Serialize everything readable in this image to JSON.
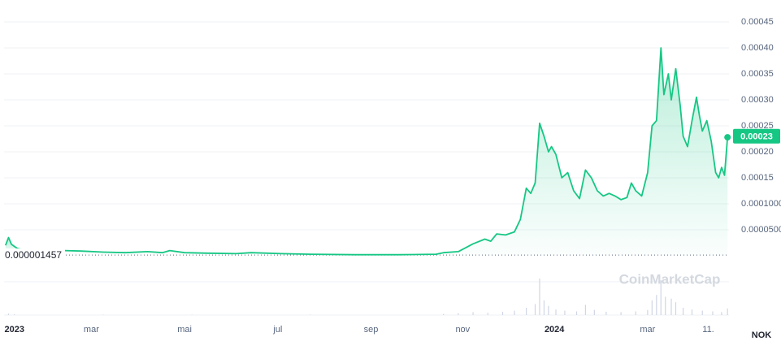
{
  "chart_data": {
    "type": "line",
    "currency": "NOK",
    "watermark": "CoinMarketCap",
    "baseline": 1.457e-06,
    "current_price": 0.00023,
    "xlim": [
      -7,
      483
    ],
    "xticks": [
      {
        "value": 0,
        "label": "2023"
      },
      {
        "value": 52,
        "label": "mar"
      },
      {
        "value": 115,
        "label": "mai"
      },
      {
        "value": 178,
        "label": "jul"
      },
      {
        "value": 241,
        "label": "sep"
      },
      {
        "value": 303,
        "label": "nov"
      },
      {
        "value": 365,
        "label": "2024"
      },
      {
        "value": 428,
        "label": "mar"
      },
      {
        "value": 469,
        "label": "11."
      }
    ],
    "ylim": [
      0,
      0.00045
    ],
    "yticks": [
      {
        "value": 5e-05,
        "label": "0.0000500"
      },
      {
        "value": 0.0001,
        "label": "0.0001000"
      },
      0.00015,
      {
        "value": 0.0002,
        "label": "0.00020"
      },
      0.00025,
      {
        "value": 0.0003,
        "label": "0.00030"
      },
      0.00035,
      {
        "value": 0.0004,
        "label": "0.00040"
      },
      0.00045
    ],
    "grid": true,
    "series": [
      {
        "color": "#16c784",
        "x": [
          -6,
          -4,
          -2,
          0,
          2,
          5,
          10,
          34,
          45,
          60,
          75,
          90,
          100,
          105,
          115,
          130,
          150,
          160,
          180,
          200,
          230,
          260,
          285,
          290,
          300,
          310,
          318,
          322,
          326,
          332,
          338,
          342,
          346,
          349,
          352,
          355,
          358,
          361,
          363,
          366,
          370,
          374,
          378,
          382,
          386,
          390,
          394,
          398,
          402,
          406,
          410,
          414,
          417,
          420,
          424,
          428,
          431,
          434,
          437,
          439,
          442,
          444,
          447,
          450,
          452,
          455,
          458,
          461,
          463,
          465,
          468,
          471,
          474,
          476,
          478,
          480,
          482
        ],
        "values": [
          2e-05,
          3.5e-05,
          2.2e-05,
          1.8e-05,
          1.4e-05,
          1.2e-05,
          null,
          1e-05,
          9e-06,
          7e-06,
          6e-06,
          8e-06,
          6e-06,
          1e-05,
          6e-06,
          5e-06,
          4e-06,
          6e-06,
          4e-06,
          3e-06,
          2e-06,
          2e-06,
          3e-06,
          6e-06,
          8e-06,
          2.3e-05,
          3.2e-05,
          2.8e-05,
          4.2e-05,
          4e-05,
          4.6e-05,
          7e-05,
          0.00013,
          0.00012,
          0.00014,
          0.000255,
          0.00023,
          0.0002,
          0.00021,
          0.000195,
          0.00015,
          0.00016,
          0.000125,
          0.00011,
          0.000165,
          0.00015,
          0.000125,
          0.000115,
          0.00012,
          0.000115,
          0.000108,
          0.000112,
          0.00014,
          0.000125,
          0.000115,
          0.00016,
          0.00025,
          0.00026,
          0.0004,
          0.00031,
          0.00035,
          0.0003,
          0.00036,
          0.00029,
          0.00023,
          0.00021,
          0.00026,
          0.000305,
          0.00027,
          0.00024,
          0.00026,
          0.00022,
          0.00016,
          0.00015,
          0.00017,
          0.000155,
          0.000228
        ]
      }
    ],
    "volume": {
      "x": [
        -4,
        0,
        60,
        120,
        200,
        290,
        300,
        310,
        320,
        330,
        338,
        346,
        352,
        355,
        358,
        361,
        366,
        372,
        380,
        386,
        392,
        400,
        410,
        420,
        428,
        431,
        434,
        437,
        440,
        444,
        447,
        452,
        458,
        465,
        472,
        478,
        482
      ],
      "values": [
        4,
        2,
        1,
        1,
        1,
        3,
        5,
        8,
        6,
        9,
        12,
        20,
        30,
        100,
        40,
        25,
        15,
        12,
        10,
        28,
        14,
        9,
        8,
        10,
        14,
        40,
        55,
        95,
        50,
        45,
        35,
        20,
        15,
        12,
        10,
        8,
        18
      ]
    }
  }
}
